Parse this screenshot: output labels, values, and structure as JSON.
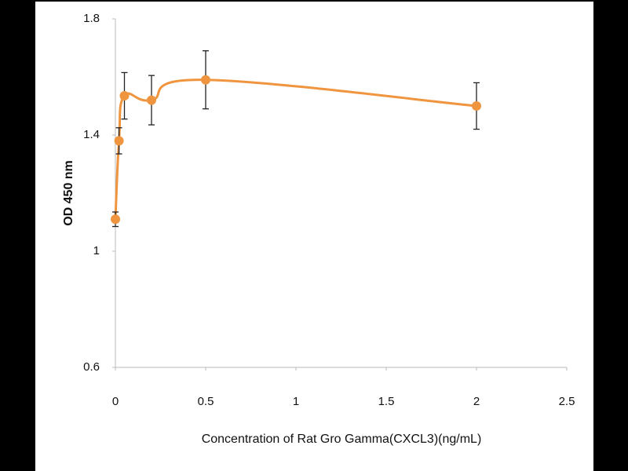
{
  "chart_data": {
    "type": "line",
    "x_label": "Concentration of Rat Gro Gamma(CXCL3)(ng/mL)",
    "y_label": "OD 450 nm",
    "x": [
      0,
      0.02,
      0.05,
      0.2,
      0.5,
      2
    ],
    "values": [
      1.11,
      1.38,
      1.535,
      1.52,
      1.59,
      1.5
    ],
    "errors": [
      0.025,
      0.045,
      0.08,
      0.085,
      0.1,
      0.08
    ],
    "color": "#f0953f",
    "xlim": [
      0,
      2.5
    ],
    "xticks": [
      0,
      0.5,
      1,
      1.5,
      2,
      2.5
    ],
    "ylim": [
      0.6,
      1.8
    ],
    "yticks": [
      0.6,
      1,
      1.4,
      1.8
    ]
  }
}
